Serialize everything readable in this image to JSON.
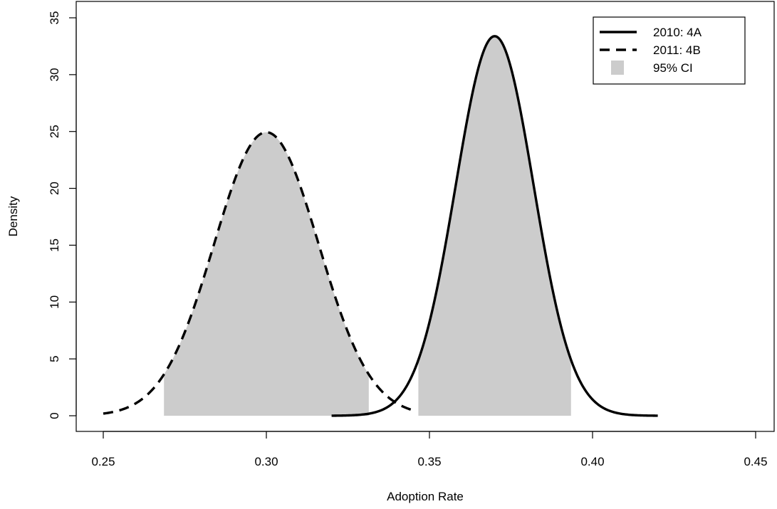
{
  "chart_data": {
    "type": "area",
    "xlabel": "Adoption Rate",
    "ylabel": "Density",
    "xlim": [
      0.25,
      0.45
    ],
    "ylim": [
      0,
      35
    ],
    "x_ticks": [
      "0.25",
      "0.30",
      "0.35",
      "0.40",
      "0.45"
    ],
    "y_ticks": [
      "0",
      "5",
      "10",
      "15",
      "20",
      "25",
      "30",
      "35"
    ],
    "legend": {
      "placement": "top-right",
      "entries": [
        {
          "label": "2010: 4A",
          "style": "solid"
        },
        {
          "label": "2011: 4B",
          "style": "dashed"
        },
        {
          "label": "95% CI",
          "style": "fill"
        }
      ]
    },
    "series": [
      {
        "name": "2010: 4A",
        "style": "solid",
        "distribution": "normal",
        "mean": 0.37,
        "sd": 0.01195,
        "x_range": [
          0.32,
          0.42
        ],
        "ci": [
          0.3466,
          0.3934
        ],
        "peak_density": 33.4
      },
      {
        "name": "2011: 4B",
        "style": "dashed",
        "distribution": "normal",
        "mean": 0.3,
        "sd": 0.016,
        "x_range": [
          0.25,
          0.345
        ],
        "ci": [
          0.2686,
          0.3314
        ],
        "peak_density": 24.9
      }
    ],
    "colors": {
      "line": "#000000",
      "ci_fill": "#cccccc"
    }
  }
}
